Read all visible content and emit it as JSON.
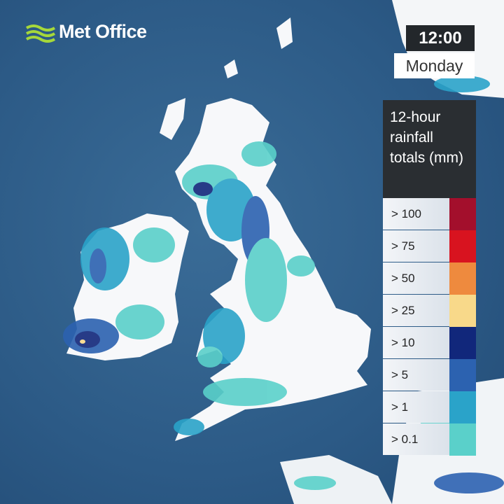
{
  "header": {
    "brand": "Met Office"
  },
  "time": {
    "clock": "12:00",
    "day": "Monday"
  },
  "legend": {
    "title": "12-hour rainfall totals (mm)",
    "items": [
      {
        "label": "> 100",
        "color": "#a30f2c"
      },
      {
        "label": "> 75",
        "color": "#d8131f"
      },
      {
        "label": "> 50",
        "color": "#ee8a3e"
      },
      {
        "label": "> 25",
        "color": "#f8d98a"
      },
      {
        "label": "> 10",
        "color": "#11277b"
      },
      {
        "label": "> 5",
        "color": "#2c62b0"
      },
      {
        "label": "> 1",
        "color": "#2aa3c9"
      },
      {
        "label": "> 0.1",
        "color": "#5ad0ca"
      }
    ]
  }
}
